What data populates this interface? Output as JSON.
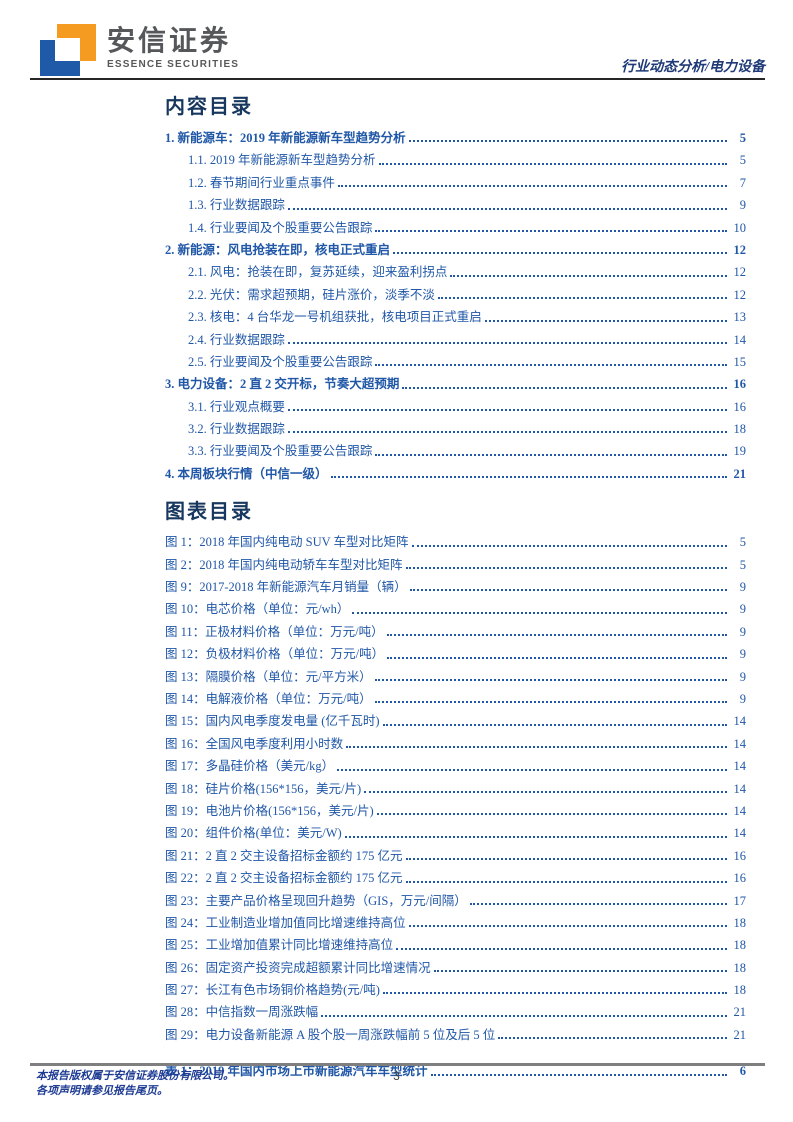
{
  "header": {
    "brand_cn": "安信证券",
    "brand_en": "ESSENCE SECURITIES",
    "report_type": "行业动态分析/电力设备"
  },
  "colors": {
    "entry_blue": "#2057A7",
    "section_title_navy": "#17375E",
    "footer_text_blue": "#1F3C94",
    "logo_orange": "#F59B22",
    "logo_blue": "#1E5AA8",
    "brand_gray": "#56575A",
    "header_rule": "#262626",
    "footer_rule": "#7F7F7F"
  },
  "toc": {
    "title": "内容目录",
    "entries": [
      {
        "label": "1. 新能源车：2019 年新能源新车型趋势分析",
        "page": "5",
        "level": 1,
        "bold": true
      },
      {
        "label": "1.1. 2019 年新能源新车型趋势分析",
        "page": "5",
        "level": 2,
        "bold": false
      },
      {
        "label": "1.2. 春节期间行业重点事件",
        "page": "7",
        "level": 2,
        "bold": false
      },
      {
        "label": "1.3. 行业数据跟踪",
        "page": "9",
        "level": 2,
        "bold": false
      },
      {
        "label": "1.4. 行业要闻及个股重要公告跟踪",
        "page": "10",
        "level": 2,
        "bold": false
      },
      {
        "label": "2. 新能源：风电抢装在即，核电正式重启",
        "page": "12",
        "level": 1,
        "bold": true
      },
      {
        "label": "2.1. 风电：抢装在即，复苏延续，迎来盈利拐点",
        "page": "12",
        "level": 2,
        "bold": false
      },
      {
        "label": "2.2. 光伏：需求超预期，硅片涨价，淡季不淡",
        "page": "12",
        "level": 2,
        "bold": false
      },
      {
        "label": "2.3. 核电：4 台华龙一号机组获批，核电项目正式重启",
        "page": "13",
        "level": 2,
        "bold": false
      },
      {
        "label": "2.4. 行业数据跟踪",
        "page": "14",
        "level": 2,
        "bold": false
      },
      {
        "label": "2.5. 行业要闻及个股重要公告跟踪",
        "page": "15",
        "level": 2,
        "bold": false
      },
      {
        "label": "3. 电力设备：2 直 2 交开标，节奏大超预期",
        "page": "16",
        "level": 1,
        "bold": true
      },
      {
        "label": "3.1. 行业观点概要",
        "page": "16",
        "level": 2,
        "bold": false
      },
      {
        "label": "3.2. 行业数据跟踪",
        "page": "18",
        "level": 2,
        "bold": false
      },
      {
        "label": "3.3. 行业要闻及个股重要公告跟踪",
        "page": "19",
        "level": 2,
        "bold": false
      },
      {
        "label": "4. 本周板块行情（中信一级）",
        "page": "21",
        "level": 1,
        "bold": true
      }
    ]
  },
  "figures": {
    "title": "图表目录",
    "entries": [
      {
        "label": "图 1：2018 年国内纯电动 SUV 车型对比矩阵",
        "page": "5",
        "level": 1,
        "bold": false
      },
      {
        "label": "图 2：2018 年国内纯电动轿车车型对比矩阵",
        "page": "5",
        "level": 1,
        "bold": false
      },
      {
        "label": "图 9：2017-2018 年新能源汽车月销量（辆）",
        "page": "9",
        "level": 1,
        "bold": false
      },
      {
        "label": "图 10：电芯价格（单位：元/wh）",
        "page": "9",
        "level": 1,
        "bold": false
      },
      {
        "label": "图 11：正极材料价格（单位：万元/吨）",
        "page": "9",
        "level": 1,
        "bold": false
      },
      {
        "label": "图 12：负极材料价格（单位：万元/吨）",
        "page": "9",
        "level": 1,
        "bold": false
      },
      {
        "label": "图 13：隔膜价格（单位：元/平方米）",
        "page": "9",
        "level": 1,
        "bold": false
      },
      {
        "label": "图 14：电解液价格（单位：万元/吨）",
        "page": "9",
        "level": 1,
        "bold": false
      },
      {
        "label": "图 15：国内风电季度发电量 (亿千瓦时)",
        "page": "14",
        "level": 1,
        "bold": false
      },
      {
        "label": "图 16：全国风电季度利用小时数",
        "page": "14",
        "level": 1,
        "bold": false
      },
      {
        "label": "图 17：多晶硅价格（美元/kg）",
        "page": "14",
        "level": 1,
        "bold": false
      },
      {
        "label": "图 18：硅片价格(156*156，美元/片)",
        "page": "14",
        "level": 1,
        "bold": false
      },
      {
        "label": "图 19：电池片价格(156*156，美元/片)",
        "page": "14",
        "level": 1,
        "bold": false
      },
      {
        "label": "图 20：组件价格(单位：美元/W)",
        "page": "14",
        "level": 1,
        "bold": false
      },
      {
        "label": "图 21：2 直 2 交主设备招标金额约 175 亿元",
        "page": "16",
        "level": 1,
        "bold": false
      },
      {
        "label": "图 22：2 直 2 交主设备招标金额约 175 亿元",
        "page": "16",
        "level": 1,
        "bold": false
      },
      {
        "label": "图 23：主要产品价格呈现回升趋势（GIS，万元/间隔）",
        "page": "17",
        "level": 1,
        "bold": false
      },
      {
        "label": "图 24：工业制造业增加值同比增速维持高位",
        "page": "18",
        "level": 1,
        "bold": false
      },
      {
        "label": "图 25：工业增加值累计同比增速维持高位",
        "page": "18",
        "level": 1,
        "bold": false
      },
      {
        "label": "图 26：固定资产投资完成超额累计同比增速情况",
        "page": "18",
        "level": 1,
        "bold": false
      },
      {
        "label": "图 27：长江有色市场铜价格趋势(元/吨)",
        "page": "18",
        "level": 1,
        "bold": false
      },
      {
        "label": "图 28：中信指数一周涨跌幅",
        "page": "21",
        "level": 1,
        "bold": false
      },
      {
        "label": "图 29：电力设备新能源 A 股个股一周涨跌幅前 5 位及后 5 位",
        "page": "21",
        "level": 1,
        "bold": false
      }
    ],
    "table_entries": [
      {
        "label": "表 1：2019 年国内市场上市新能源汽车车型统计",
        "page": "6",
        "level": 1,
        "bold": true
      }
    ]
  },
  "footer": {
    "disclaimer_line1": "本报告版权属于安信证券股份有限公司。",
    "disclaimer_line2": "各项声明请参见报告尾页。",
    "page_number": "3"
  }
}
